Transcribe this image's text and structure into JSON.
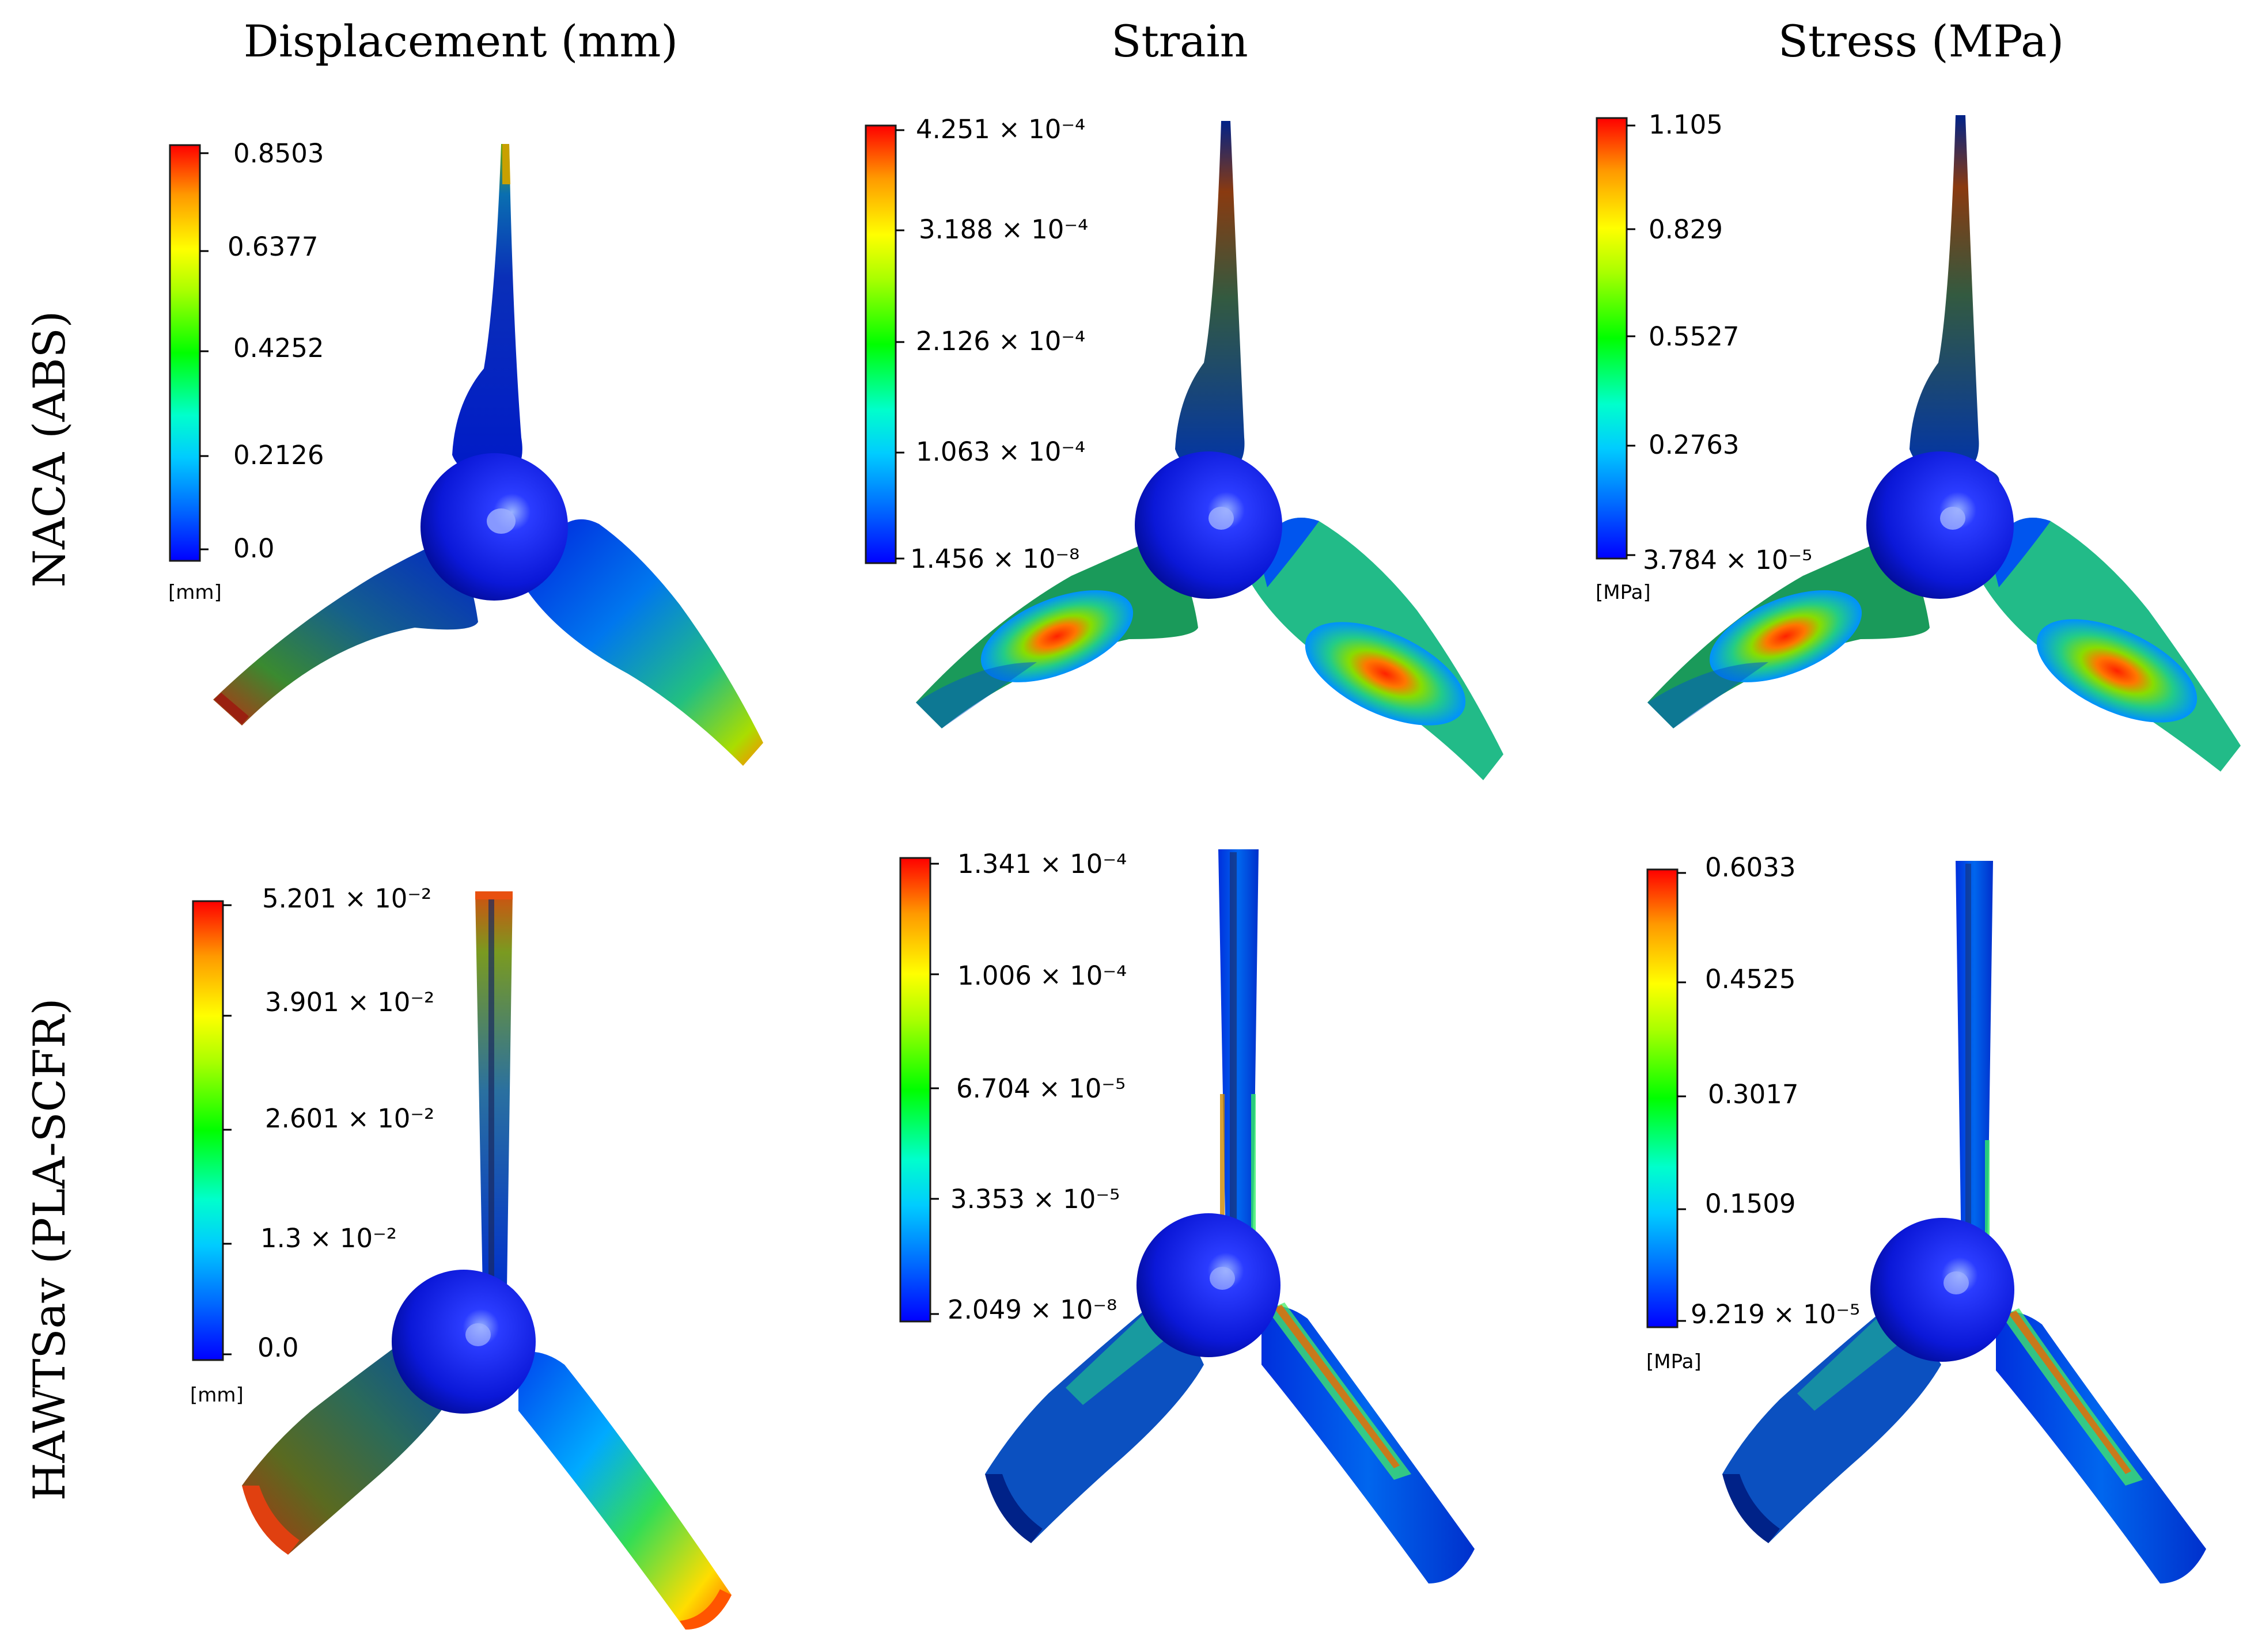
{
  "columns": [
    "Displacement (mm)",
    "Strain",
    "Stress (MPa)"
  ],
  "rows": [
    "NACA (ABS)",
    "HAWTSav (PLA-SCFR)"
  ],
  "colormap": [
    "#0000ff",
    "#0055ff",
    "#00b4ff",
    "#00ffff",
    "#00ffaa",
    "#00ff00",
    "#aaff00",
    "#ffff00",
    "#ffbb00",
    "#ff6600",
    "#ff0000"
  ],
  "panels": {
    "naca_disp": {
      "ticks": [
        "0.8503",
        "0.6377",
        "0.4252",
        "0.2126",
        "0.0"
      ],
      "unit": "[mm]"
    },
    "naca_strain": {
      "ticks": [
        "4.251 × 10⁻⁴",
        "3.188 × 10⁻⁴",
        "2.126 × 10⁻⁴",
        "1.063 × 10⁻⁴",
        "1.456 × 10⁻⁸"
      ],
      "unit": ""
    },
    "naca_stress": {
      "ticks": [
        "1.105",
        "0.829",
        "0.5527",
        "0.2763",
        "3.784 × 10⁻⁵"
      ],
      "unit": "[MPa]"
    },
    "hawt_disp": {
      "ticks": [
        "5.201 × 10⁻²",
        "3.901 × 10⁻²",
        "2.601 × 10⁻²",
        "1.3 × 10⁻²",
        "0.0"
      ],
      "unit": "[mm]"
    },
    "hawt_strain": {
      "ticks": [
        "1.341 × 10⁻⁴",
        "1.006 × 10⁻⁴",
        "6.704 × 10⁻⁵",
        "3.353 × 10⁻⁵",
        "2.049 × 10⁻⁸"
      ],
      "unit": ""
    },
    "hawt_stress": {
      "ticks": [
        "0.6033",
        "0.4525",
        "0.3017",
        "0.1509",
        "9.219 × 10⁻⁵"
      ],
      "unit": "[MPa]"
    }
  }
}
